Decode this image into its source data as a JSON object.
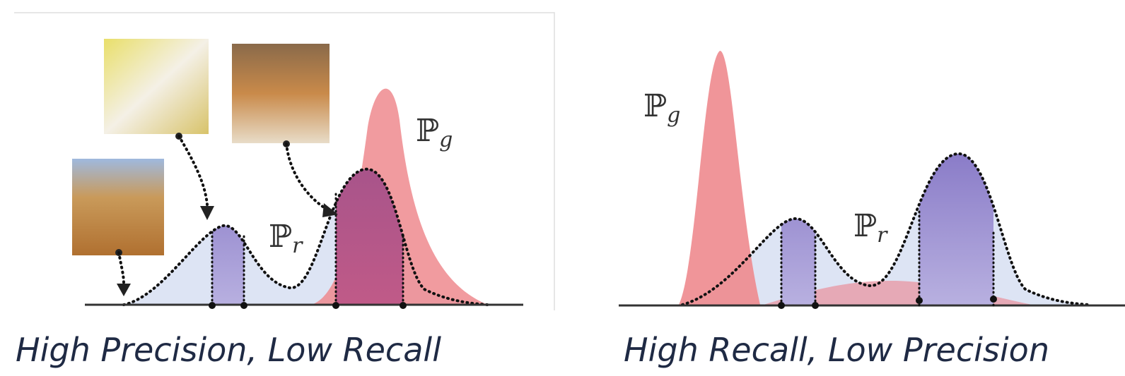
{
  "panels": [
    {
      "pg": {
        "base": "ℙ",
        "sub": "g"
      },
      "pr": {
        "base": "ℙ",
        "sub": "r"
      },
      "caption": "High Precision, Low Recall"
    },
    {
      "pg": {
        "base": "ℙ",
        "sub": "g"
      },
      "pr": {
        "base": "ℙ",
        "sub": "r"
      },
      "caption": "High Recall, Low Precision"
    }
  ]
}
